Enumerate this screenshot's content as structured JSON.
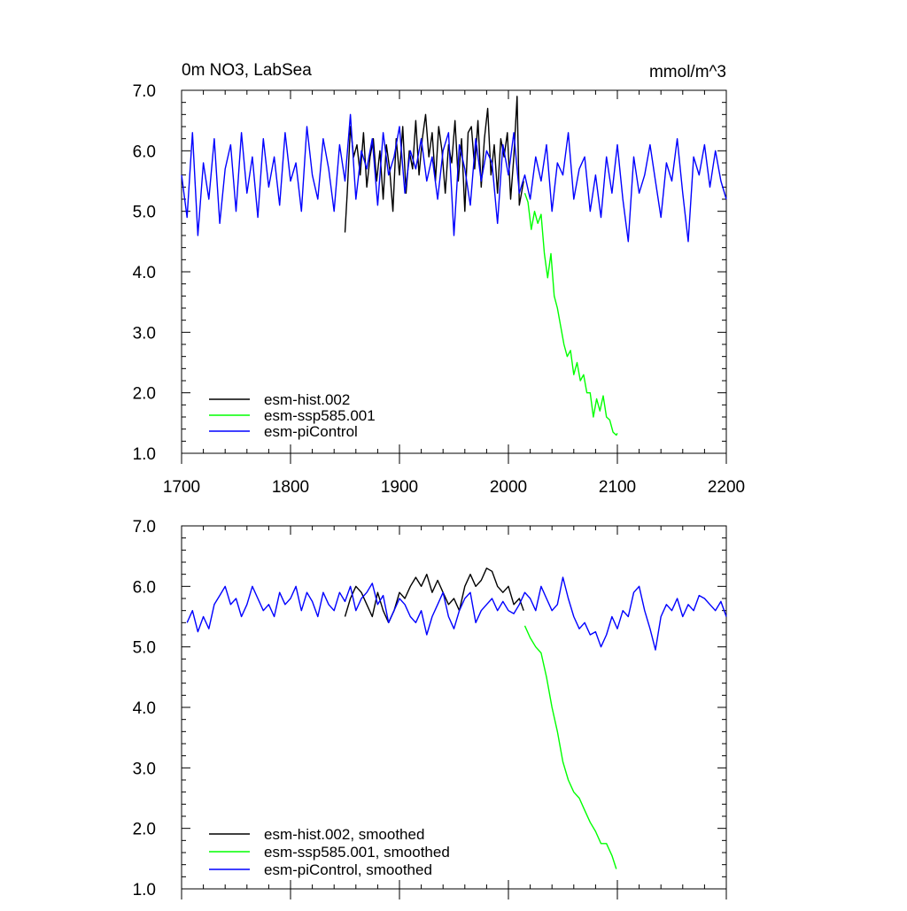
{
  "chart_data": [
    {
      "type": "line",
      "title_left": "0m NO3, LabSea",
      "title_right": "mmol/m^3",
      "xlim": [
        1700,
        2200
      ],
      "ylim": [
        1.0,
        7.0
      ],
      "x_ticks": [
        "1700",
        "1800",
        "1900",
        "2000",
        "2100",
        "2200"
      ],
      "y_ticks": [
        "1.0",
        "2.0",
        "3.0",
        "4.0",
        "5.0",
        "6.0",
        "7.0"
      ],
      "legend_position": "bottom-left",
      "series": [
        {
          "name": "esm-hist.002",
          "color": "#000000",
          "x": [
            1850,
            1852,
            1855,
            1858,
            1861,
            1864,
            1867,
            1870,
            1873,
            1876,
            1879,
            1882,
            1885,
            1888,
            1891,
            1894,
            1897,
            1900,
            1903,
            1906,
            1909,
            1912,
            1915,
            1918,
            1921,
            1924,
            1927,
            1930,
            1933,
            1936,
            1939,
            1942,
            1945,
            1948,
            1951,
            1954,
            1957,
            1960,
            1963,
            1966,
            1969,
            1972,
            1975,
            1978,
            1981,
            1984,
            1987,
            1990,
            1993,
            1996,
            1999,
            2002,
            2005,
            2008,
            2010,
            2014
          ],
          "values": [
            4.65,
            5.3,
            6.4,
            5.9,
            6.1,
            5.6,
            6.3,
            5.4,
            5.9,
            6.2,
            5.5,
            6.0,
            5.2,
            6.1,
            5.7,
            5.0,
            6.2,
            5.6,
            6.4,
            5.3,
            6.0,
            5.7,
            6.5,
            5.6,
            6.2,
            6.6,
            5.9,
            6.3,
            5.5,
            6.4,
            6.0,
            5.3,
            6.1,
            5.8,
            6.5,
            5.5,
            6.2,
            5.0,
            6.3,
            6.4,
            5.7,
            6.5,
            5.4,
            6.2,
            6.7,
            5.6,
            6.1,
            5.3,
            6.2,
            5.9,
            6.3,
            5.2,
            5.9,
            6.9,
            5.1,
            5.5
          ]
        },
        {
          "name": "esm-ssp585.001",
          "color": "#00ff00",
          "x": [
            2015,
            2018,
            2021,
            2024,
            2027,
            2030,
            2033,
            2036,
            2039,
            2042,
            2045,
            2048,
            2051,
            2054,
            2057,
            2060,
            2063,
            2066,
            2069,
            2072,
            2075,
            2078,
            2081,
            2084,
            2087,
            2090,
            2093,
            2096,
            2099,
            2100
          ],
          "values": [
            5.3,
            5.15,
            4.7,
            5.0,
            4.8,
            4.95,
            4.3,
            3.9,
            4.3,
            3.6,
            3.4,
            3.1,
            2.8,
            2.6,
            2.7,
            2.3,
            2.5,
            2.2,
            2.3,
            2.0,
            2.0,
            1.6,
            1.9,
            1.7,
            1.95,
            1.6,
            1.55,
            1.35,
            1.3,
            1.33
          ]
        },
        {
          "name": "esm-piControl",
          "color": "#0000ff",
          "x": [
            1700,
            1705,
            1710,
            1715,
            1720,
            1725,
            1730,
            1735,
            1740,
            1745,
            1750,
            1755,
            1760,
            1765,
            1770,
            1775,
            1780,
            1785,
            1790,
            1795,
            1800,
            1805,
            1810,
            1815,
            1820,
            1825,
            1830,
            1835,
            1840,
            1845,
            1850,
            1855,
            1860,
            1865,
            1870,
            1875,
            1880,
            1885,
            1890,
            1895,
            1900,
            1905,
            1910,
            1915,
            1920,
            1925,
            1930,
            1935,
            1940,
            1945,
            1950,
            1955,
            1960,
            1965,
            1970,
            1975,
            1980,
            1985,
            1990,
            1995,
            2000,
            2005,
            2010,
            2015,
            2020,
            2025,
            2030,
            2035,
            2040,
            2045,
            2050,
            2055,
            2060,
            2065,
            2070,
            2075,
            2080,
            2085,
            2090,
            2095,
            2100,
            2105,
            2110,
            2115,
            2120,
            2125,
            2130,
            2135,
            2140,
            2145,
            2150,
            2155,
            2160,
            2165,
            2170,
            2175,
            2180,
            2185,
            2190,
            2195,
            2200
          ],
          "values": [
            5.6,
            4.9,
            6.3,
            4.6,
            5.8,
            5.2,
            6.2,
            4.8,
            5.7,
            6.1,
            5.0,
            6.3,
            5.3,
            5.9,
            4.9,
            6.2,
            5.4,
            5.9,
            5.1,
            6.3,
            5.5,
            5.8,
            5.0,
            6.4,
            5.6,
            5.2,
            6.2,
            5.7,
            5.0,
            6.1,
            5.5,
            6.6,
            5.2,
            6.0,
            5.7,
            6.2,
            5.1,
            6.3,
            5.6,
            5.9,
            6.4,
            5.3,
            6.0,
            5.7,
            6.2,
            5.5,
            5.9,
            5.2,
            6.0,
            6.3,
            4.6,
            6.1,
            5.7,
            5.1,
            6.2,
            5.5,
            6.0,
            5.8,
            4.8,
            6.1,
            5.6,
            6.3,
            5.3,
            5.6,
            5.2,
            5.9,
            5.5,
            6.1,
            5.0,
            5.8,
            5.6,
            6.3,
            5.2,
            5.7,
            5.9,
            5.0,
            5.6,
            4.9,
            5.9,
            5.3,
            6.1,
            5.2,
            4.5,
            5.9,
            5.3,
            5.6,
            6.1,
            5.5,
            4.9,
            5.8,
            5.5,
            6.2,
            5.3,
            4.5,
            5.9,
            5.6,
            6.1,
            5.4,
            6.0,
            5.5,
            5.2
          ]
        }
      ]
    },
    {
      "type": "line",
      "xlim": [
        1700,
        2200
      ],
      "ylim": [
        1.0,
        7.0
      ],
      "y_ticks": [
        "1.0",
        "2.0",
        "3.0",
        "4.0",
        "5.0",
        "6.0",
        "7.0"
      ],
      "legend_position": "bottom-left",
      "series": [
        {
          "name": "esm-hist.002, smoothed",
          "color": "#000000",
          "x": [
            1850,
            1855,
            1860,
            1865,
            1870,
            1875,
            1880,
            1885,
            1890,
            1895,
            1900,
            1905,
            1910,
            1915,
            1920,
            1925,
            1930,
            1935,
            1940,
            1945,
            1950,
            1955,
            1960,
            1965,
            1970,
            1975,
            1980,
            1985,
            1990,
            1995,
            2000,
            2005,
            2010,
            2014
          ],
          "values": [
            5.5,
            5.8,
            6.0,
            5.9,
            5.7,
            5.5,
            5.9,
            5.6,
            5.4,
            5.6,
            5.9,
            5.8,
            6.0,
            6.15,
            6.0,
            6.2,
            5.9,
            6.1,
            5.9,
            5.7,
            5.8,
            5.6,
            6.0,
            6.2,
            6.0,
            6.1,
            6.3,
            6.25,
            6.0,
            5.9,
            6.0,
            5.7,
            5.8,
            5.6
          ]
        },
        {
          "name": "esm-ssp585.001, smoothed",
          "color": "#00ff00",
          "x": [
            2015,
            2020,
            2025,
            2030,
            2035,
            2040,
            2045,
            2050,
            2055,
            2060,
            2065,
            2070,
            2075,
            2080,
            2085,
            2090,
            2095,
            2099
          ],
          "values": [
            5.35,
            5.15,
            5.0,
            4.9,
            4.5,
            4.0,
            3.6,
            3.1,
            2.8,
            2.6,
            2.5,
            2.3,
            2.1,
            1.95,
            1.75,
            1.75,
            1.55,
            1.33
          ]
        },
        {
          "name": "esm-piControl, smoothed",
          "color": "#0000ff",
          "x": [
            1705,
            1710,
            1715,
            1720,
            1725,
            1730,
            1735,
            1740,
            1745,
            1750,
            1755,
            1760,
            1765,
            1770,
            1775,
            1780,
            1785,
            1790,
            1795,
            1800,
            1805,
            1810,
            1815,
            1820,
            1825,
            1830,
            1835,
            1840,
            1845,
            1850,
            1855,
            1860,
            1865,
            1870,
            1875,
            1880,
            1885,
            1890,
            1895,
            1900,
            1905,
            1910,
            1915,
            1920,
            1925,
            1930,
            1935,
            1940,
            1945,
            1950,
            1955,
            1960,
            1965,
            1970,
            1975,
            1980,
            1985,
            1990,
            1995,
            2000,
            2005,
            2010,
            2015,
            2020,
            2025,
            2030,
            2035,
            2040,
            2045,
            2050,
            2055,
            2060,
            2065,
            2070,
            2075,
            2080,
            2085,
            2090,
            2095,
            2100,
            2105,
            2110,
            2115,
            2120,
            2125,
            2130,
            2135,
            2140,
            2145,
            2150,
            2155,
            2160,
            2165,
            2170,
            2175,
            2180,
            2185,
            2190,
            2195,
            2200
          ],
          "values": [
            5.4,
            5.6,
            5.25,
            5.5,
            5.3,
            5.7,
            5.85,
            6.0,
            5.7,
            5.8,
            5.5,
            5.7,
            6.0,
            5.8,
            5.6,
            5.7,
            5.5,
            5.9,
            5.7,
            5.8,
            6.0,
            5.6,
            5.9,
            5.75,
            5.5,
            5.9,
            5.7,
            5.6,
            5.9,
            5.75,
            6.0,
            5.6,
            5.8,
            5.9,
            6.05,
            5.7,
            5.85,
            5.4,
            5.6,
            5.8,
            5.7,
            5.5,
            5.4,
            5.6,
            5.2,
            5.5,
            5.7,
            5.9,
            5.5,
            5.3,
            5.6,
            5.8,
            5.9,
            5.4,
            5.6,
            5.7,
            5.8,
            5.6,
            5.75,
            5.6,
            5.55,
            5.7,
            5.9,
            5.8,
            5.6,
            6.0,
            5.8,
            5.6,
            5.7,
            6.15,
            5.8,
            5.5,
            5.3,
            5.4,
            5.2,
            5.25,
            5.0,
            5.2,
            5.5,
            5.3,
            5.6,
            5.5,
            5.9,
            6.0,
            5.6,
            5.3,
            4.95,
            5.5,
            5.7,
            5.6,
            5.8,
            5.5,
            5.7,
            5.6,
            5.85,
            5.8,
            5.7,
            5.6,
            5.75,
            5.5
          ]
        }
      ]
    }
  ]
}
